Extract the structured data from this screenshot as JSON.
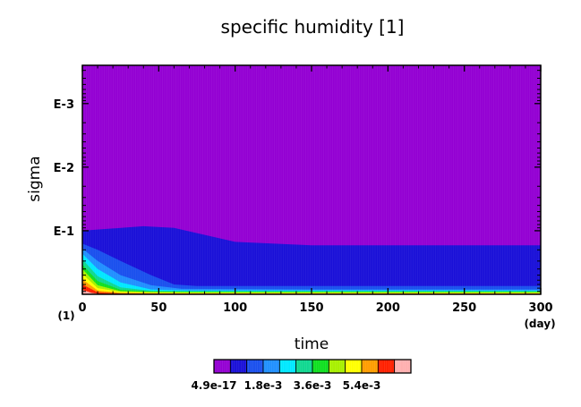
{
  "chart_data": {
    "type": "heatmap",
    "title": "specific humidity [1]",
    "xlabel": "time",
    "ylabel": "sigma",
    "x_unit": "(day)",
    "y_unit": "(1)",
    "xlim": [
      0,
      300
    ],
    "x_ticks": [
      0,
      50,
      100,
      150,
      200,
      250,
      300
    ],
    "x_tick_labels": [
      "0",
      "50",
      "100",
      "150",
      "200",
      "250",
      "300"
    ],
    "y_scale": "log",
    "y_ticks": [
      0.001,
      0.01,
      0.1
    ],
    "y_tick_labels": [
      "E-3",
      "E-2",
      "E-1"
    ],
    "grid": false,
    "colorbar": {
      "colors": [
        "#9400d3",
        "#1a10d8",
        "#1a50ee",
        "#2090ff",
        "#00e8ff",
        "#10d890",
        "#10e020",
        "#a8f000",
        "#ffff00",
        "#ff9d00",
        "#ff2000",
        "#ffb0b0"
      ],
      "tick_labels": [
        "4.9e-17",
        "1.8e-3",
        "3.6e-3",
        "5.4e-3"
      ],
      "tick_values": [
        4.9e-17,
        0.0018,
        0.0036,
        0.0054
      ]
    },
    "contour_bands": [
      {
        "level": 1,
        "sigma": [
          [
            0,
            0.1
          ],
          [
            20,
            0.092
          ],
          [
            40,
            0.085
          ],
          [
            60,
            0.09
          ],
          [
            100,
            0.15
          ],
          [
            150,
            0.17
          ],
          [
            200,
            0.17
          ],
          [
            300,
            0.17
          ]
        ]
      },
      {
        "level": 2,
        "sigma": [
          [
            0,
            0.16
          ],
          [
            10,
            0.2
          ],
          [
            25,
            0.3
          ],
          [
            45,
            0.5
          ],
          [
            60,
            0.7
          ],
          [
            75,
            0.74
          ],
          [
            150,
            0.74
          ],
          [
            300,
            0.74
          ]
        ]
      },
      {
        "level": 3,
        "sigma": [
          [
            0,
            0.19
          ],
          [
            10,
            0.3
          ],
          [
            25,
            0.5
          ],
          [
            45,
            0.72
          ],
          [
            65,
            0.82
          ],
          [
            150,
            0.84
          ],
          [
            300,
            0.84
          ]
        ]
      },
      {
        "level": 4,
        "sigma": [
          [
            0,
            0.23
          ],
          [
            10,
            0.4
          ],
          [
            25,
            0.65
          ],
          [
            45,
            0.84
          ],
          [
            70,
            0.87
          ],
          [
            150,
            0.87
          ],
          [
            300,
            0.87
          ]
        ]
      },
      {
        "level": 5,
        "sigma": [
          [
            0,
            0.28
          ],
          [
            10,
            0.52
          ],
          [
            25,
            0.78
          ],
          [
            45,
            0.88
          ],
          [
            70,
            0.89
          ],
          [
            300,
            0.89
          ]
        ]
      },
      {
        "level": 6,
        "sigma": [
          [
            0,
            0.34
          ],
          [
            10,
            0.62
          ],
          [
            25,
            0.85
          ],
          [
            45,
            0.9
          ],
          [
            70,
            0.91
          ],
          [
            300,
            0.91
          ]
        ]
      },
      {
        "level": 7,
        "sigma": [
          [
            0,
            0.4
          ],
          [
            10,
            0.72
          ],
          [
            25,
            0.89
          ],
          [
            45,
            0.92
          ],
          [
            70,
            0.93
          ],
          [
            300,
            0.93
          ]
        ]
      },
      {
        "level": 8,
        "sigma": [
          [
            0,
            0.48
          ],
          [
            10,
            0.8
          ],
          [
            25,
            0.92
          ],
          [
            45,
            0.94
          ],
          [
            70,
            0.95
          ],
          [
            300,
            0.95
          ]
        ]
      },
      {
        "level": 9,
        "sigma": [
          [
            0,
            0.58
          ],
          [
            10,
            0.87
          ],
          [
            25,
            0.95
          ],
          [
            45,
            0.96
          ],
          [
            70,
            0.97
          ],
          [
            300,
            0.97
          ]
        ]
      },
      {
        "level": 10,
        "sigma": [
          [
            0,
            0.7
          ],
          [
            10,
            0.93
          ],
          [
            25,
            0.97
          ],
          [
            45,
            0.98
          ],
          [
            300,
            0.98
          ]
        ]
      },
      {
        "level": 11,
        "sigma": [
          [
            0,
            0.85
          ],
          [
            6,
            0.95
          ],
          [
            12,
            0.99
          ],
          [
            300,
            0.995
          ]
        ]
      }
    ]
  }
}
